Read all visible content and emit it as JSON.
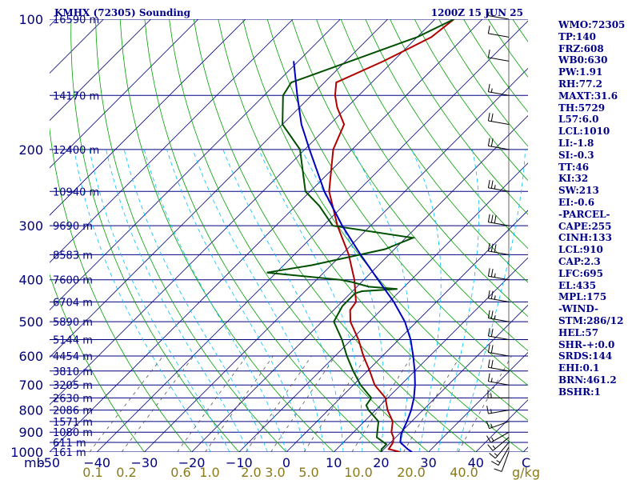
{
  "header": {
    "station": "KMHX (72305) Sounding",
    "time": "1200Z 15 JUN 25"
  },
  "indices": [
    "WMO:72305",
    "TP:140",
    "FRZ:608",
    "WB0:630",
    "PW:1.91",
    "RH:77.2",
    "MAXT:31.6",
    "TH:5729",
    "L57:6.0",
    "LCL:1010",
    "LI:-1.8",
    "SI:-0.3",
    "TT:46",
    "KI:32",
    "SW:213",
    "EI:-0.6",
    "-PARCEL-",
    "CAPE:255",
    "CINH:133",
    "LCL:910",
    "CAP:2.3",
    "LFC:695",
    "EL:435",
    "MPL:175",
    "-WIND-",
    "STM:286/12",
    "HEL:57",
    "SHR-+:0.0",
    "SRDS:144",
    "EHI:0.1",
    "BRN:461.2",
    "BSHR:1"
  ],
  "colors": {
    "isobar": "#000080",
    "isotherm": "#000080",
    "dry_adiabat": "#00a000",
    "moist_adiabat": "#00bfff",
    "mixing_ratio": "#555555",
    "temperature": "#b00000",
    "dewpoint": "#005000",
    "parcel": "#0000c0",
    "barbs": "#000000"
  },
  "chart_data": {
    "type": "line",
    "title": "KMHX (72305) Sounding",
    "xlabel": "C",
    "ylabel": "mb",
    "y_scale": "log",
    "ylim": [
      1000,
      100
    ],
    "xlim": [
      -50,
      50
    ],
    "pressure_ticks": [
      {
        "p": 100,
        "label": "100"
      },
      {
        "p": 200,
        "label": "200"
      },
      {
        "p": 300,
        "label": "300"
      },
      {
        "p": 400,
        "label": "400"
      },
      {
        "p": 500,
        "label": "500"
      },
      {
        "p": 600,
        "label": "600"
      },
      {
        "p": 700,
        "label": "700"
      },
      {
        "p": 800,
        "label": "800"
      },
      {
        "p": 900,
        "label": "900"
      },
      {
        "p": 1000,
        "label": "1000"
      }
    ],
    "height_labels": [
      {
        "p": 100,
        "label": "16590 m"
      },
      {
        "p": 150,
        "label": "14170 m"
      },
      {
        "p": 200,
        "label": "12400 m"
      },
      {
        "p": 250,
        "label": "10940 m"
      },
      {
        "p": 300,
        "label": "9690 m"
      },
      {
        "p": 350,
        "label": "8583 m"
      },
      {
        "p": 400,
        "label": "7600 m"
      },
      {
        "p": 450,
        "label": "6704 m"
      },
      {
        "p": 500,
        "label": "5890 m"
      },
      {
        "p": 550,
        "label": "5144 m"
      },
      {
        "p": 600,
        "label": "4454 m"
      },
      {
        "p": 650,
        "label": "3810 m"
      },
      {
        "p": 700,
        "label": "3205 m"
      },
      {
        "p": 750,
        "label": "2630 m"
      },
      {
        "p": 800,
        "label": "2086 m"
      },
      {
        "p": 850,
        "label": "1571 m"
      },
      {
        "p": 900,
        "label": "1080 m"
      },
      {
        "p": 950,
        "label": "611 m"
      },
      {
        "p": 1000,
        "label": "161 m"
      }
    ],
    "temperature_ticks": [
      {
        "t": -50,
        "label": "-50"
      },
      {
        "t": -40,
        "label": "−40"
      },
      {
        "t": -30,
        "label": "−30"
      },
      {
        "t": -20,
        "label": "−20"
      },
      {
        "t": -10,
        "label": "−10"
      },
      {
        "t": 0,
        "label": "0"
      },
      {
        "t": 10,
        "label": "10"
      },
      {
        "t": 20,
        "label": "20"
      },
      {
        "t": 30,
        "label": "30"
      },
      {
        "t": 40,
        "label": "40"
      }
    ],
    "temperature_unit": "C",
    "mixing_ratio_ticks": [
      "0.1",
      "0.2",
      "0.6",
      "1.0",
      "2.0",
      "3.0",
      "5.0",
      "10.0",
      "20.0",
      "40.0"
    ],
    "mixing_ratio_unit": "g/kg",
    "mb_label": "mb",
    "series": [
      {
        "key": "temperature",
        "points": [
          [
            1012,
            22.0
          ],
          [
            1000,
            24.0
          ],
          [
            985,
            21.0
          ],
          [
            950,
            20.5
          ],
          [
            925,
            19.5
          ],
          [
            900,
            18.0
          ],
          [
            850,
            16.0
          ],
          [
            800,
            12.5
          ],
          [
            750,
            9.5
          ],
          [
            700,
            4.5
          ],
          [
            650,
            0.5
          ],
          [
            600,
            -4.0
          ],
          [
            550,
            -8.5
          ],
          [
            500,
            -14.0
          ],
          [
            470,
            -16.5
          ],
          [
            450,
            -17.0
          ],
          [
            400,
            -22.0
          ],
          [
            350,
            -28.5
          ],
          [
            300,
            -37.0
          ],
          [
            250,
            -46.0
          ],
          [
            200,
            -54.0
          ],
          [
            175,
            -57.0
          ],
          [
            160,
            -62.0
          ],
          [
            150,
            -65.0
          ],
          [
            140,
            -67.5
          ],
          [
            125,
            -62.0
          ],
          [
            110,
            -57.0
          ],
          [
            100,
            -56.0
          ]
        ]
      },
      {
        "key": "dewpoint",
        "points": [
          [
            1012,
            19.5
          ],
          [
            1000,
            20.0
          ],
          [
            985,
            19.5
          ],
          [
            960,
            19.5
          ],
          [
            925,
            16.0
          ],
          [
            900,
            15.0
          ],
          [
            850,
            13.0
          ],
          [
            800,
            8.5
          ],
          [
            780,
            7.0
          ],
          [
            750,
            6.5
          ],
          [
            700,
            1.5
          ],
          [
            650,
            -3.0
          ],
          [
            600,
            -7.5
          ],
          [
            550,
            -12.0
          ],
          [
            500,
            -17.5
          ],
          [
            460,
            -19.0
          ],
          [
            450,
            -19.0
          ],
          [
            430,
            -19.0
          ],
          [
            425,
            -18.0
          ],
          [
            420,
            -11.0
          ],
          [
            415,
            -17.5
          ],
          [
            405,
            -22.0
          ],
          [
            400,
            -25.0
          ],
          [
            385,
            -42.0
          ],
          [
            370,
            -34.0
          ],
          [
            340,
            -22.0
          ],
          [
            320,
            -18.5
          ],
          [
            300,
            -38.0
          ],
          [
            270,
            -45.0
          ],
          [
            250,
            -51.0
          ],
          [
            200,
            -61.0
          ],
          [
            175,
            -70.0
          ],
          [
            150,
            -76.0
          ],
          [
            140,
            -77.0
          ],
          [
            125,
            -69.0
          ],
          [
            110,
            -60.0
          ],
          [
            100,
            -56.0
          ]
        ]
      },
      {
        "key": "parcel",
        "points": [
          [
            1000,
            26.5
          ],
          [
            985,
            25.0
          ],
          [
            950,
            22.0
          ],
          [
            910,
            20.5
          ],
          [
            850,
            19.0
          ],
          [
            800,
            17.5
          ],
          [
            750,
            15.5
          ],
          [
            700,
            13.0
          ],
          [
            650,
            10.0
          ],
          [
            600,
            6.5
          ],
          [
            550,
            2.5
          ],
          [
            500,
            -2.5
          ],
          [
            450,
            -9.0
          ],
          [
            400,
            -17.0
          ],
          [
            350,
            -26.0
          ],
          [
            300,
            -36.0
          ],
          [
            250,
            -47.0
          ],
          [
            200,
            -59.0
          ],
          [
            175,
            -66.0
          ],
          [
            150,
            -73.0
          ],
          [
            125,
            -81.0
          ]
        ]
      }
    ],
    "wind_barbs": [
      [
        1000,
        200,
        10
      ],
      [
        975,
        210,
        15
      ],
      [
        950,
        220,
        15
      ],
      [
        925,
        230,
        15
      ],
      [
        900,
        240,
        15
      ],
      [
        850,
        250,
        15
      ],
      [
        800,
        260,
        15
      ],
      [
        750,
        270,
        15
      ],
      [
        700,
        280,
        15
      ],
      [
        650,
        280,
        20
      ],
      [
        600,
        280,
        20
      ],
      [
        550,
        280,
        20
      ],
      [
        500,
        280,
        25
      ],
      [
        450,
        280,
        25
      ],
      [
        400,
        280,
        25
      ],
      [
        350,
        280,
        30
      ],
      [
        300,
        280,
        30
      ],
      [
        250,
        280,
        25
      ],
      [
        200,
        280,
        20
      ],
      [
        175,
        280,
        20
      ],
      [
        150,
        280,
        15
      ],
      [
        125,
        280,
        10
      ],
      [
        110,
        280,
        10
      ],
      [
        100,
        280,
        5
      ]
    ],
    "grid": true,
    "legend": "none"
  }
}
